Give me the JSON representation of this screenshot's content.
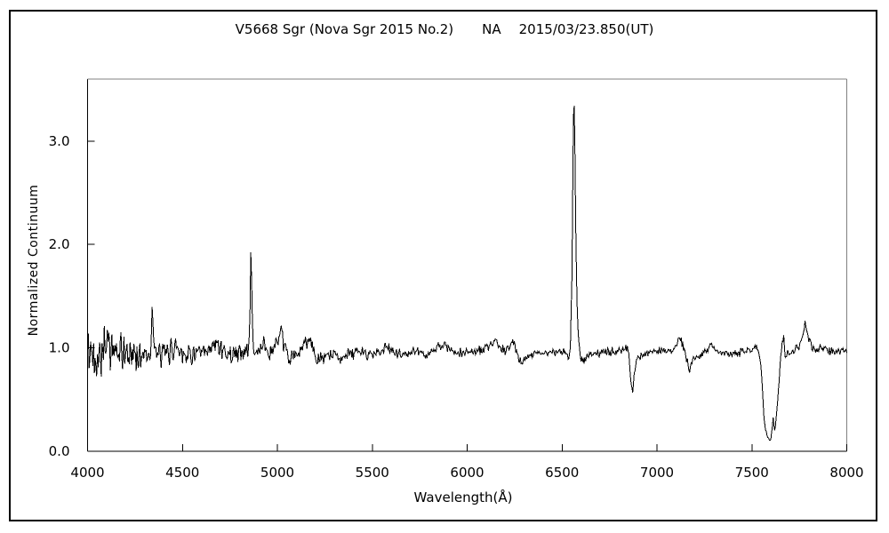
{
  "title": {
    "object": "V5668 Sgr (Nova Sgr 2015 No.2)",
    "flag": "NA",
    "date": "2015/03/23.850(UT)"
  },
  "chart_data": {
    "type": "line",
    "title": "V5668 Sgr (Nova Sgr 2015 No.2)    NA    2015/03/23.850(UT)",
    "xlabel": "Wavelength(Å)",
    "ylabel": "Normalized Continuum",
    "xlim": [
      4000,
      8000
    ],
    "ylim": [
      0,
      3.6
    ],
    "grid": false,
    "legend": false,
    "background": "#ffffff",
    "line_color": "#000000",
    "axis_color": "#000000",
    "box_color": "#808080",
    "x_ticks": [
      4000,
      4500,
      5000,
      5500,
      6000,
      6500,
      7000,
      7500,
      8000
    ],
    "x_tick_labels": [
      "4000",
      "4500",
      "5000",
      "5500",
      "6000",
      "6500",
      "7000",
      "7500",
      "8000"
    ],
    "y_ticks": [
      0,
      1,
      2,
      3
    ],
    "y_tick_labels": [
      "0.0",
      "1.0",
      "2.0",
      "3.0"
    ],
    "features": [
      {
        "name": "H-gamma emission line",
        "wavelength": 4340,
        "peak_value": 1.42
      },
      {
        "name": "H-beta emission line",
        "wavelength": 4861,
        "peak_value": 2.09
      },
      {
        "name": "emission bump",
        "wavelength": 5018,
        "peak_value": 1.15
      },
      {
        "name": "emission bump",
        "wavelength": 5169,
        "peak_value": 1.12
      },
      {
        "name": "H-alpha emission line",
        "wavelength": 6563,
        "peak_value": 3.45
      },
      {
        "name": "telluric O2 B-band absorption",
        "wavelength": 6871,
        "min_value": 0.57
      },
      {
        "name": "absorption dip",
        "wavelength": 7168,
        "min_value": 0.78
      },
      {
        "name": "telluric O2 A-band absorption",
        "wavelength": 7600,
        "min_value": 0.11
      },
      {
        "name": "emission bump",
        "wavelength": 7781,
        "peak_value": 1.25
      }
    ],
    "series": [
      {
        "name": "normalized spectrum",
        "continuum": 1.0,
        "sample_step_angstrom": 4,
        "noise_seed": 42,
        "anchors": [
          [
            4000,
            0.92
          ],
          [
            4060,
            0.95
          ],
          [
            4101,
            1.08
          ],
          [
            4150,
            0.92
          ],
          [
            4200,
            0.95
          ],
          [
            4260,
            0.93
          ],
          [
            4310,
            0.95
          ],
          [
            4330,
            0.98
          ],
          [
            4336,
            1.15
          ],
          [
            4340,
            1.42
          ],
          [
            4345,
            1.1
          ],
          [
            4355,
            0.95
          ],
          [
            4400,
            0.92
          ],
          [
            4471,
            1.02
          ],
          [
            4520,
            0.93
          ],
          [
            4570,
            0.95
          ],
          [
            4620,
            0.93
          ],
          [
            4686,
            1.05
          ],
          [
            4730,
            0.94
          ],
          [
            4790,
            0.95
          ],
          [
            4830,
            0.96
          ],
          [
            4850,
            1.0
          ],
          [
            4856,
            1.35
          ],
          [
            4861,
            2.09
          ],
          [
            4866,
            1.45
          ],
          [
            4872,
            1.05
          ],
          [
            4880,
            0.92
          ],
          [
            4924,
            1.05
          ],
          [
            4960,
            0.93
          ],
          [
            5018,
            1.12
          ],
          [
            5060,
            0.9
          ],
          [
            5110,
            0.93
          ],
          [
            5169,
            1.12
          ],
          [
            5210,
            0.85
          ],
          [
            5270,
            0.93
          ],
          [
            5340,
            0.92
          ],
          [
            5420,
            0.96
          ],
          [
            5500,
            0.94
          ],
          [
            5577,
            1.0
          ],
          [
            5650,
            0.93
          ],
          [
            5720,
            0.96
          ],
          [
            5800,
            0.94
          ],
          [
            5876,
            1.04
          ],
          [
            5930,
            0.94
          ],
          [
            6000,
            0.96
          ],
          [
            6080,
            0.98
          ],
          [
            6155,
            1.05
          ],
          [
            6200,
            0.96
          ],
          [
            6245,
            1.06
          ],
          [
            6283,
            0.85
          ],
          [
            6330,
            0.94
          ],
          [
            6400,
            0.96
          ],
          [
            6460,
            0.95
          ],
          [
            6510,
            0.97
          ],
          [
            6535,
            0.9
          ],
          [
            6544,
            1.0
          ],
          [
            6552,
            1.7
          ],
          [
            6557,
            2.7
          ],
          [
            6560,
            3.25
          ],
          [
            6563,
            3.45
          ],
          [
            6566,
            3.2
          ],
          [
            6572,
            2.2
          ],
          [
            6578,
            1.45
          ],
          [
            6586,
            1.1
          ],
          [
            6600,
            0.9
          ],
          [
            6615,
            0.88
          ],
          [
            6640,
            0.93
          ],
          [
            6700,
            0.95
          ],
          [
            6760,
            0.96
          ],
          [
            6820,
            0.98
          ],
          [
            6848,
            1.0
          ],
          [
            6862,
            0.7
          ],
          [
            6871,
            0.57
          ],
          [
            6880,
            0.75
          ],
          [
            6895,
            0.9
          ],
          [
            6930,
            0.94
          ],
          [
            6990,
            0.97
          ],
          [
            7050,
            0.96
          ],
          [
            7090,
            1.0
          ],
          [
            7122,
            1.1
          ],
          [
            7145,
            0.98
          ],
          [
            7168,
            0.78
          ],
          [
            7195,
            0.9
          ],
          [
            7240,
            0.95
          ],
          [
            7285,
            1.02
          ],
          [
            7330,
            0.95
          ],
          [
            7390,
            0.94
          ],
          [
            7450,
            0.96
          ],
          [
            7500,
            0.99
          ],
          [
            7530,
            1.0
          ],
          [
            7548,
            0.85
          ],
          [
            7565,
            0.3
          ],
          [
            7580,
            0.14
          ],
          [
            7600,
            0.12
          ],
          [
            7612,
            0.32
          ],
          [
            7622,
            0.2
          ],
          [
            7635,
            0.45
          ],
          [
            7648,
            0.8
          ],
          [
            7660,
            1.05
          ],
          [
            7668,
            1.12
          ],
          [
            7676,
            0.9
          ],
          [
            7690,
            0.95
          ],
          [
            7720,
            0.98
          ],
          [
            7750,
            1.02
          ],
          [
            7781,
            1.22
          ],
          [
            7800,
            1.08
          ],
          [
            7830,
            0.98
          ],
          [
            7870,
            1.0
          ],
          [
            7910,
            0.97
          ],
          [
            7950,
            0.96
          ],
          [
            8000,
            0.97
          ]
        ],
        "noise_envelope": [
          [
            4000,
            0.42
          ],
          [
            4060,
            0.3
          ],
          [
            4180,
            0.24
          ],
          [
            4300,
            0.18
          ],
          [
            4450,
            0.14
          ],
          [
            4600,
            0.12
          ],
          [
            4800,
            0.11
          ],
          [
            5000,
            0.11
          ],
          [
            5200,
            0.1
          ],
          [
            5400,
            0.08
          ],
          [
            5600,
            0.065
          ],
          [
            5800,
            0.06
          ],
          [
            6000,
            0.055
          ],
          [
            6200,
            0.05
          ],
          [
            6400,
            0.045
          ],
          [
            6520,
            0.04
          ],
          [
            6563,
            0.025
          ],
          [
            6620,
            0.05
          ],
          [
            6800,
            0.05
          ],
          [
            6870,
            0.04
          ],
          [
            7000,
            0.05
          ],
          [
            7200,
            0.05
          ],
          [
            7400,
            0.05
          ],
          [
            7560,
            0.035
          ],
          [
            7610,
            0.03
          ],
          [
            7700,
            0.055
          ],
          [
            7800,
            0.05
          ],
          [
            8000,
            0.05
          ]
        ]
      }
    ]
  }
}
